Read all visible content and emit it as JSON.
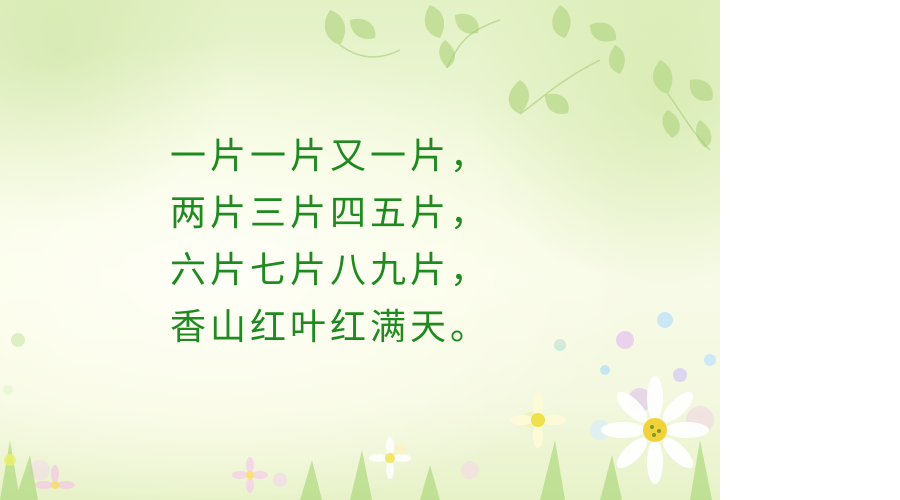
{
  "slide": {
    "poem_lines": [
      "一片一片又一片，",
      "两片三片四五片，",
      "六片七片八九片，",
      "香山红叶红满天。"
    ]
  },
  "colors": {
    "text": "#1f8a1f",
    "background_light": "#f8fbe8",
    "background_green": "#e3f1c5",
    "leaf": "#b9d98a"
  },
  "decorations": [
    "leaf-icon",
    "flower-icon",
    "bokeh-dots"
  ]
}
